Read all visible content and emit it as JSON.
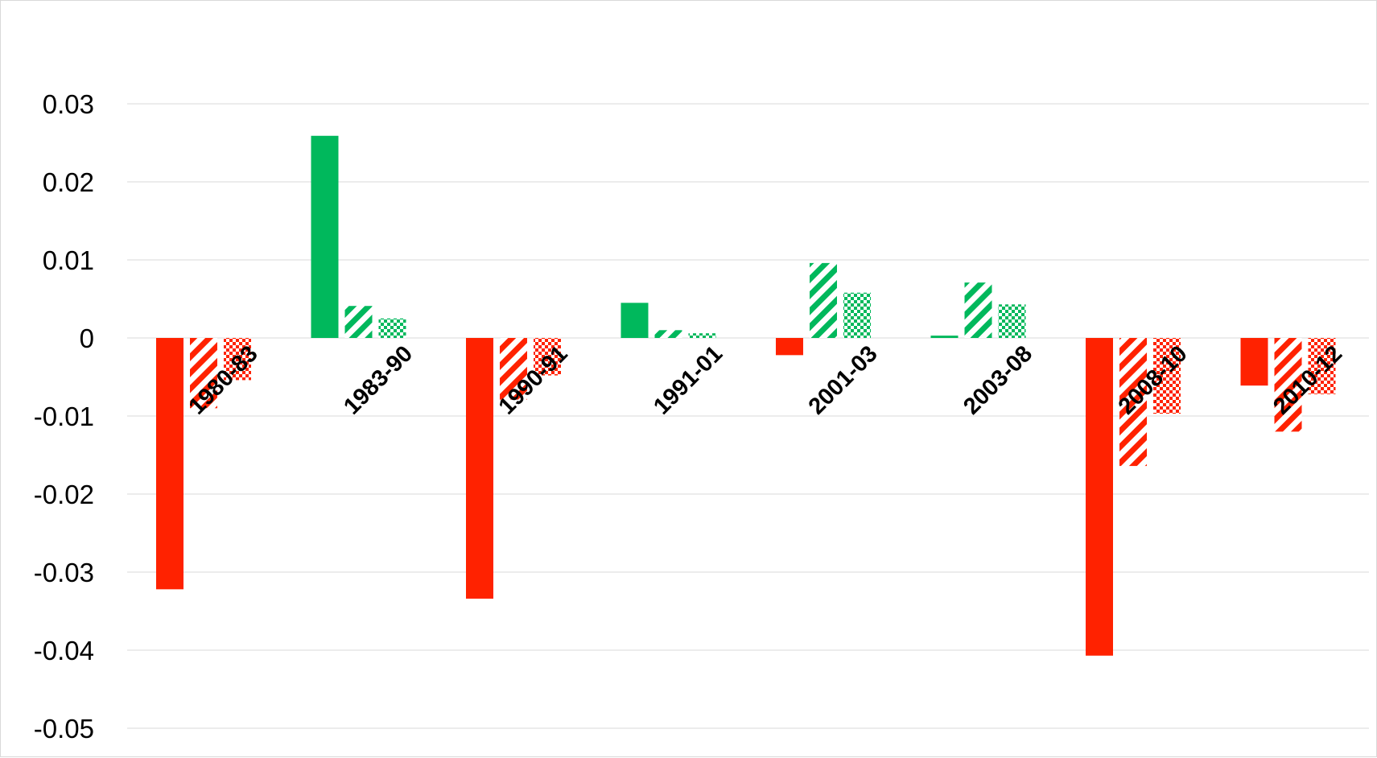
{
  "chart_data": {
    "type": "bar",
    "title": "",
    "xlabel": "",
    "ylabel": "",
    "ylim": [
      -0.05,
      0.03
    ],
    "ytick_labels": [
      "0.03",
      "0.02",
      "0.01",
      "0",
      "-0.01",
      "-0.02",
      "-0.03",
      "-0.04",
      "-0.05"
    ],
    "yticks": [
      0.03,
      0.02,
      0.01,
      0,
      -0.01,
      -0.02,
      -0.03,
      -0.04,
      -0.05
    ],
    "grid": true,
    "legend": "none",
    "categories": [
      "1980-83",
      "1983-90",
      "1990-91",
      "1991-01",
      "2001-03",
      "2003-08",
      "2008-10",
      "2010-12"
    ],
    "series": [
      {
        "pattern": "solid",
        "values": [
          -0.0322,
          0.0259,
          -0.0334,
          0.0045,
          -0.0022,
          0.0003,
          -0.0407,
          -0.0061
        ]
      },
      {
        "pattern": "striped",
        "values": [
          -0.009,
          0.0041,
          -0.0079,
          0.001,
          0.0096,
          0.0071,
          -0.0164,
          -0.012
        ]
      },
      {
        "pattern": "dotted",
        "values": [
          -0.0054,
          0.0025,
          -0.0048,
          0.0006,
          0.0058,
          0.0043,
          -0.0097,
          -0.0072
        ]
      }
    ],
    "colors": {
      "negative": "#ff2200",
      "positive": "#00b85c",
      "grid": "#d9d9d9"
    }
  }
}
